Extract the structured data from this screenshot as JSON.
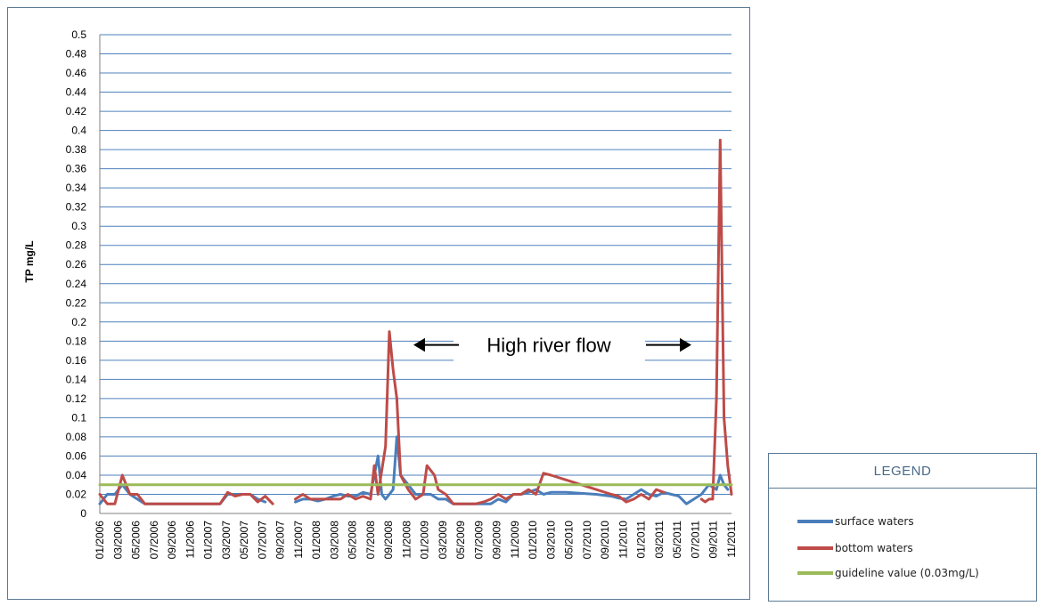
{
  "chart_data": {
    "type": "line",
    "title": "",
    "xlabel": "",
    "ylabel": "TP mg/L",
    "ylim": [
      0,
      0.5
    ],
    "ytick_step": 0.02,
    "x_tick_labels": [
      "01/2006",
      "03/2006",
      "05/2006",
      "07/2006",
      "09/2006",
      "11/2006",
      "01/2007",
      "03/2007",
      "05/2007",
      "07/2007",
      "09/2007",
      "11/2007",
      "01/2008",
      "03/2008",
      "05/2008",
      "07/2008",
      "09/2008",
      "11/2008",
      "01/2009",
      "03/2009",
      "05/2009",
      "07/2009",
      "09/2009",
      "11/2009",
      "01/2010",
      "03/2010",
      "05/2010",
      "07/2010",
      "09/2010",
      "11/2010",
      "01/2011",
      "03/2011",
      "05/2011",
      "07/2011",
      "09/2011",
      "11/2011"
    ],
    "annotation": {
      "text": "High river flow",
      "left_x": 33.5,
      "right_x": 67.5,
      "y": 0.176
    },
    "grid": true,
    "series": [
      {
        "name": "surface waters",
        "color": "#4a7ebb",
        "segments": [
          [
            [
              0,
              0.01
            ],
            [
              1,
              0.02
            ],
            [
              2,
              0.02
            ],
            [
              3,
              0.03
            ],
            [
              4,
              0.02
            ],
            [
              5,
              0.015
            ],
            [
              6,
              0.01
            ],
            [
              8,
              0.01
            ],
            [
              10,
              0.01
            ],
            [
              12,
              0.01
            ],
            [
              14,
              0.01
            ],
            [
              16,
              0.01
            ],
            [
              17,
              0.02
            ],
            [
              18,
              0.02
            ],
            [
              19,
              0.02
            ],
            [
              20,
              0.02
            ],
            [
              21,
              0.015
            ],
            [
              22,
              0.012
            ]
          ],
          [
            [
              26,
              0.012
            ],
            [
              27,
              0.015
            ],
            [
              28,
              0.015
            ],
            [
              29,
              0.013
            ],
            [
              30,
              0.015
            ],
            [
              31,
              0.018
            ],
            [
              32,
              0.02
            ],
            [
              33,
              0.018
            ],
            [
              34,
              0.018
            ],
            [
              35,
              0.022
            ],
            [
              36,
              0.02
            ],
            [
              37,
              0.06
            ],
            [
              37.5,
              0.02
            ],
            [
              38,
              0.015
            ],
            [
              39,
              0.025
            ],
            [
              39.5,
              0.08
            ],
            [
              40,
              0.04
            ],
            [
              41,
              0.03
            ],
            [
              42,
              0.02
            ],
            [
              43,
              0.02
            ],
            [
              44,
              0.02
            ],
            [
              45,
              0.015
            ],
            [
              46,
              0.015
            ],
            [
              47,
              0.01
            ],
            [
              48,
              0.01
            ],
            [
              50,
              0.01
            ],
            [
              52,
              0.01
            ],
            [
              53,
              0.015
            ],
            [
              54,
              0.012
            ],
            [
              55,
              0.02
            ],
            [
              56,
              0.02
            ],
            [
              57,
              0.022
            ],
            [
              58,
              0.025
            ],
            [
              59,
              0.02
            ],
            [
              60,
              0.022
            ],
            [
              62,
              0.022
            ],
            [
              66,
              0.02
            ],
            [
              68,
              0.018
            ],
            [
              69,
              0.016
            ],
            [
              70,
              0.015
            ],
            [
              71,
              0.02
            ],
            [
              72,
              0.025
            ],
            [
              73,
              0.02
            ],
            [
              74,
              0.018
            ],
            [
              75,
              0.022
            ],
            [
              76,
              0.02
            ],
            [
              77,
              0.018
            ],
            [
              78,
              0.01
            ],
            [
              79,
              0.015
            ],
            [
              80,
              0.02
            ],
            [
              81,
              0.03
            ],
            [
              82,
              0.025
            ],
            [
              82.5,
              0.04
            ],
            [
              83,
              0.03
            ],
            [
              83.5,
              0.025
            ]
          ]
        ]
      },
      {
        "name": "bottom waters",
        "color": "#be4b48",
        "segments": [
          [
            [
              0,
              0.02
            ],
            [
              1,
              0.01
            ],
            [
              2,
              0.01
            ],
            [
              3,
              0.04
            ],
            [
              4,
              0.02
            ],
            [
              5,
              0.02
            ],
            [
              6,
              0.01
            ],
            [
              8,
              0.01
            ],
            [
              10,
              0.01
            ],
            [
              12,
              0.01
            ],
            [
              14,
              0.01
            ],
            [
              16,
              0.01
            ],
            [
              17,
              0.022
            ],
            [
              18,
              0.018
            ],
            [
              19,
              0.02
            ],
            [
              20,
              0.02
            ],
            [
              21,
              0.012
            ],
            [
              22,
              0.018
            ],
            [
              23,
              0.01
            ]
          ],
          [
            [
              26,
              0.015
            ],
            [
              27,
              0.02
            ],
            [
              28,
              0.015
            ],
            [
              29,
              0.015
            ],
            [
              30,
              0.015
            ],
            [
              31,
              0.015
            ],
            [
              32,
              0.015
            ],
            [
              33,
              0.02
            ],
            [
              34,
              0.015
            ],
            [
              35,
              0.018
            ],
            [
              36,
              0.015
            ],
            [
              36.5,
              0.05
            ],
            [
              37,
              0.02
            ],
            [
              38,
              0.07
            ],
            [
              38.5,
              0.19
            ],
            [
              39,
              0.15
            ],
            [
              39.5,
              0.12
            ],
            [
              40,
              0.04
            ],
            [
              41,
              0.025
            ],
            [
              42,
              0.015
            ],
            [
              43,
              0.02
            ],
            [
              43.5,
              0.05
            ],
            [
              44,
              0.045
            ],
            [
              44.5,
              0.04
            ],
            [
              45,
              0.025
            ],
            [
              46,
              0.02
            ],
            [
              47,
              0.01
            ],
            [
              48,
              0.01
            ],
            [
              50,
              0.01
            ],
            [
              51,
              0.012
            ],
            [
              52,
              0.015
            ],
            [
              53,
              0.02
            ],
            [
              54,
              0.015
            ],
            [
              55,
              0.02
            ],
            [
              56,
              0.02
            ],
            [
              57,
              0.025
            ],
            [
              58,
              0.02
            ],
            [
              59,
              0.042
            ],
            [
              60,
              0.04
            ],
            [
              62,
              0.035
            ],
            [
              64,
              0.03
            ],
            [
              66,
              0.025
            ],
            [
              68,
              0.02
            ],
            [
              69,
              0.018
            ],
            [
              70,
              0.012
            ],
            [
              71,
              0.015
            ],
            [
              72,
              0.02
            ],
            [
              73,
              0.015
            ],
            [
              74,
              0.025
            ],
            [
              75,
              0.022
            ]
          ],
          [
            [
              80,
              0.015
            ],
            [
              80.5,
              0.012
            ],
            [
              81,
              0.015
            ],
            [
              81.5,
              0.015
            ],
            [
              82,
              0.12
            ],
            [
              82.5,
              0.39
            ],
            [
              83,
              0.1
            ],
            [
              83.5,
              0.05
            ],
            [
              84,
              0.02
            ]
          ]
        ]
      },
      {
        "name": "guideline value (0.03mg/L)",
        "color": "#9bbb59",
        "segments": [
          [
            [
              0,
              0.03
            ],
            [
              84,
              0.03
            ]
          ]
        ]
      }
    ]
  },
  "legend": {
    "title": "LEGEND",
    "items": [
      {
        "label": "surface waters",
        "color": "#4a7ebb"
      },
      {
        "label": "bottom waters",
        "color": "#be4b48"
      },
      {
        "label": "guideline value (0.03mg/L)",
        "color": "#9bbb59"
      }
    ]
  }
}
